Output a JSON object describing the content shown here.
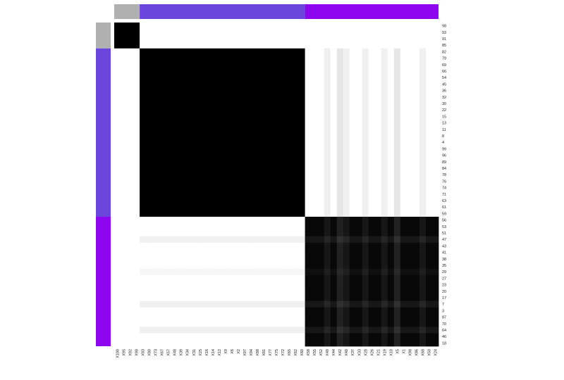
{
  "chart_data": {
    "type": "heatmap",
    "title": "",
    "xlabel": "",
    "ylabel": "",
    "legend": "none",
    "colors": {
      "cluster_1": "#b0b0b0",
      "cluster_2": "#6a46dc",
      "cluster_3": "#8e06f0",
      "high": "#000000",
      "low": "#ffffff"
    },
    "column_labels": [
      "X100",
      "X95",
      "X92",
      "X90",
      "X83",
      "X80",
      "X73",
      "X67",
      "X57",
      "X48",
      "X39",
      "X34",
      "X31",
      "X25",
      "X16",
      "X14",
      "X12",
      "X9",
      "X6",
      "X2",
      "X97",
      "X94",
      "X88",
      "X81",
      "X77",
      "X75",
      "X72",
      "X65",
      "X62",
      "X60",
      "X58",
      "X55",
      "X52",
      "X49",
      "X44",
      "X42",
      "X40",
      "X37",
      "X33",
      "X28",
      "X26",
      "X21",
      "X19",
      "X10",
      "X5",
      "X1",
      "X98",
      "X86",
      "X68",
      "X50",
      "X24"
    ],
    "row_labels": [
      "98",
      "93",
      "91",
      "85",
      "82",
      "79",
      "69",
      "66",
      "54",
      "45",
      "36",
      "32",
      "30",
      "22",
      "15",
      "13",
      "11",
      "8",
      "4",
      "99",
      "96",
      "89",
      "84",
      "78",
      "76",
      "74",
      "71",
      "63",
      "61",
      "59",
      "56",
      "53",
      "51",
      "47",
      "43",
      "41",
      "38",
      "35",
      "29",
      "27",
      "23",
      "20",
      "17",
      "7",
      "3",
      "87",
      "70",
      "64",
      "46",
      "18"
    ],
    "column_clusters": [
      {
        "cluster": 1,
        "start": 0,
        "count": 4
      },
      {
        "cluster": 2,
        "start": 4,
        "count": 26
      },
      {
        "cluster": 3,
        "start": 30,
        "count": 21
      }
    ],
    "row_clusters": [
      {
        "cluster": 1,
        "start": 0,
        "count": 4
      },
      {
        "cluster": 2,
        "start": 4,
        "count": 26
      },
      {
        "cluster": 3,
        "start": 30,
        "count": 20
      }
    ],
    "block_values": [
      [
        1,
        0,
        0
      ],
      [
        0,
        1,
        0
      ],
      [
        0,
        0,
        0.97
      ]
    ],
    "lighter_columns": [
      {
        "label": "X49",
        "value": 0.06
      },
      {
        "label": "X42",
        "value": 0.1
      },
      {
        "label": "X40",
        "value": 0.06
      },
      {
        "label": "X28",
        "value": 0.06
      },
      {
        "label": "X19",
        "value": 0.06
      },
      {
        "label": "X5",
        "value": 0.1
      },
      {
        "label": "X68",
        "value": 0.06
      }
    ],
    "lighter_rows": [
      {
        "label": "47",
        "value": 0.06
      },
      {
        "label": "29",
        "value": 0.03
      },
      {
        "label": "7",
        "value": 0.06
      },
      {
        "label": "64",
        "value": 0.06
      }
    ]
  }
}
